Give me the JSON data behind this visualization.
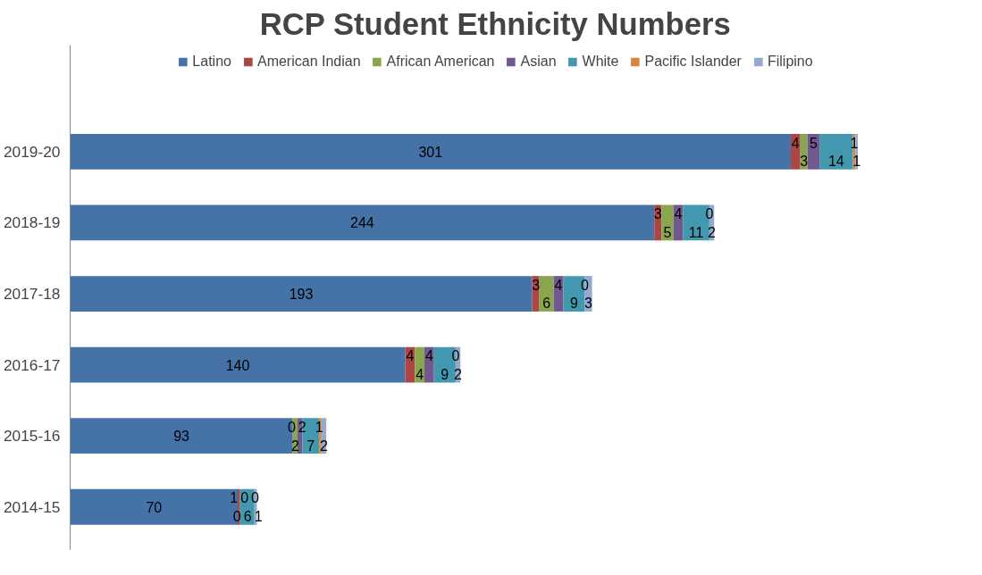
{
  "chart_data": {
    "type": "bar",
    "orientation": "horizontal",
    "stacked": true,
    "title": "RCP Student Ethnicity Numbers",
    "categories": [
      "2019-20",
      "2018-19",
      "2017-18",
      "2016-17",
      "2015-16",
      "2014-15"
    ],
    "series": [
      {
        "name": "Latino",
        "color": "#4572a7",
        "values": [
          301,
          244,
          193,
          140,
          93,
          70
        ]
      },
      {
        "name": "American Indian",
        "color": "#aa4643",
        "values": [
          4,
          3,
          3,
          4,
          0,
          1
        ]
      },
      {
        "name": "African American",
        "color": "#89a54e",
        "values": [
          3,
          5,
          6,
          4,
          2,
          0
        ]
      },
      {
        "name": "Asian",
        "color": "#71588f",
        "values": [
          5,
          4,
          4,
          4,
          2,
          0
        ]
      },
      {
        "name": "White",
        "color": "#4198af",
        "values": [
          14,
          11,
          9,
          9,
          7,
          6
        ]
      },
      {
        "name": "Pacific Islander",
        "color": "#db843d",
        "values": [
          1,
          0,
          0,
          0,
          1,
          0
        ]
      },
      {
        "name": "Filipino",
        "color": "#93a9cf",
        "values": [
          1,
          2,
          3,
          2,
          2,
          1
        ]
      }
    ],
    "data_labels": true,
    "legend": "top",
    "grid": false
  }
}
